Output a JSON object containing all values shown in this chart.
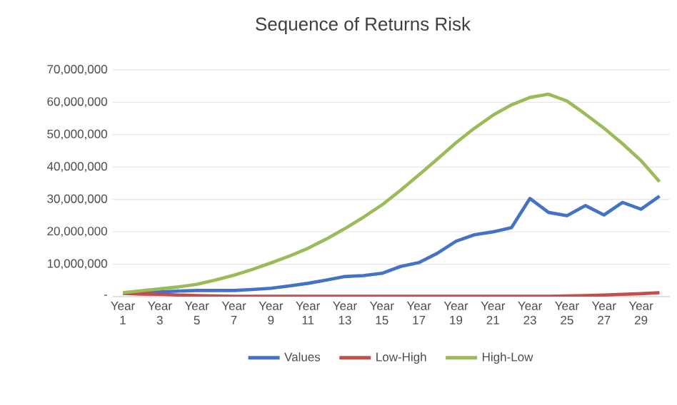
{
  "chart_data": {
    "type": "line",
    "title": "Sequence of Returns Risk",
    "categories": [
      "Year 1",
      null,
      "Year 3",
      null,
      "Year 5",
      null,
      "Year 7",
      null,
      "Year 9",
      null,
      "Year 11",
      null,
      "Year 13",
      null,
      "Year 15",
      null,
      "Year 17",
      null,
      "Year 19",
      null,
      "Year 21",
      null,
      "Year 23",
      null,
      "Year 25",
      null,
      "Year 27",
      null,
      "Year 29",
      null
    ],
    "series": [
      {
        "name": "Values",
        "color": "#4472c4",
        "values": [
          null,
          1200000,
          1500000,
          1700000,
          1900000,
          1900000,
          1900000,
          2200000,
          2600000,
          3300000,
          4100000,
          5100000,
          6200000,
          6500000,
          7200000,
          9300000,
          10500000,
          13400000,
          17100000,
          19100000,
          20000000,
          21300000,
          30300000,
          26000000,
          25000000,
          28100000,
          25200000,
          29100000,
          27000000,
          31000000
        ]
      },
      {
        "name": "Low-High",
        "color": "#c0504d",
        "values": [
          1000000,
          800000,
          700000,
          500000,
          300000,
          200000,
          100000,
          100000,
          100000,
          100000,
          100000,
          100000,
          100000,
          100000,
          100000,
          100000,
          100000,
          100000,
          100000,
          100000,
          100000,
          100000,
          100000,
          100000,
          200000,
          300000,
          500000,
          700000,
          900000,
          1200000
        ]
      },
      {
        "name": "High-Low",
        "color": "#9bbb59",
        "values": [
          1200000,
          1800000,
          2400000,
          3000000,
          3800000,
          5100000,
          6600000,
          8400000,
          10400000,
          12500000,
          14900000,
          17800000,
          21000000,
          24500000,
          28300000,
          32800000,
          37600000,
          42500000,
          47500000,
          52000000,
          56000000,
          59200000,
          61500000,
          62500000,
          60400000,
          56300000,
          52000000,
          47200000,
          42000000,
          35500000
        ]
      }
    ],
    "ylim": [
      0,
      70000000
    ],
    "yticks": [
      {
        "value": 0,
        "label": "-"
      },
      {
        "value": 10000000,
        "label": "10,000,000"
      },
      {
        "value": 20000000,
        "label": "20,000,000"
      },
      {
        "value": 30000000,
        "label": "30,000,000"
      },
      {
        "value": 40000000,
        "label": "40,000,000"
      },
      {
        "value": 50000000,
        "label": "50,000,000"
      },
      {
        "value": 60000000,
        "label": "60,000,000"
      },
      {
        "value": 70000000,
        "label": "70,000,000"
      }
    ],
    "grid": "y",
    "legend": "bottom",
    "marker": "none",
    "line_style": "solid"
  }
}
